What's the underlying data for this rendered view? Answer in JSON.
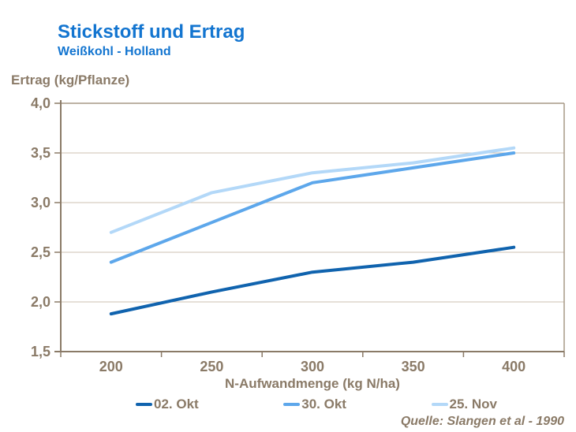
{
  "header": {
    "title": "Stickstoff und Ertrag",
    "subtitle": "Weißkohl - Holland"
  },
  "chart_data": {
    "type": "line",
    "title": "Stickstoff und Ertrag",
    "subtitle": "Weißkohl - Holland",
    "xlabel": "N-Aufwandmenge (kg N/ha)",
    "ylabel": "Ertrag (kg/Pflanze)",
    "x": [
      200,
      250,
      300,
      350,
      400
    ],
    "x_tick_labels": [
      "200",
      "250",
      "300",
      "350",
      "400"
    ],
    "y_tick_labels": [
      "4,0",
      "3,5",
      "3,0",
      "2,5",
      "2,0",
      "1,5"
    ],
    "ylim": [
      1.5,
      4.0
    ],
    "y_step": 0.5,
    "grid": "horizontal",
    "legend_position": "bottom",
    "series": [
      {
        "name": "02. Okt",
        "color": "#1063ae",
        "values": [
          1.88,
          2.1,
          2.3,
          2.4,
          2.55
        ]
      },
      {
        "name": "30. Okt",
        "color": "#5da7eb",
        "values": [
          2.4,
          2.8,
          3.2,
          3.35,
          3.5
        ]
      },
      {
        "name": "25. Nov",
        "color": "#b3d8f8",
        "values": [
          2.7,
          3.1,
          3.3,
          3.4,
          3.55
        ]
      }
    ]
  },
  "source": "Quelle: Slangen et al - 1990",
  "colors": {
    "title_blue": "#1375d0",
    "text_brown": "#8a7a67",
    "gridline": "#cdc2b2",
    "plot_border": "#a79985",
    "axis": "#8a7a67",
    "background": "#ffffff"
  }
}
